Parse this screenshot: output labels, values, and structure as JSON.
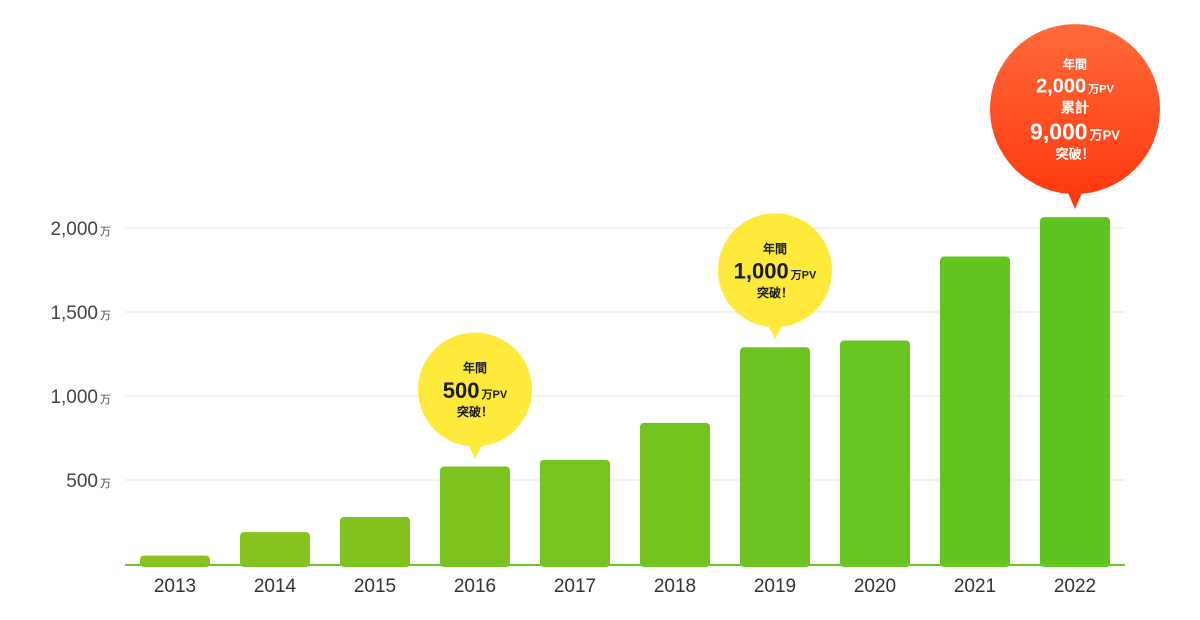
{
  "chart_data": {
    "type": "bar",
    "title": "",
    "xlabel": "",
    "ylabel": "",
    "categories": [
      "2013",
      "2014",
      "2015",
      "2016",
      "2017",
      "2018",
      "2019",
      "2020",
      "2021",
      "2022"
    ],
    "values": [
      50,
      190,
      280,
      580,
      620,
      840,
      1290,
      1330,
      1830,
      2065
    ],
    "unit": "万",
    "ylim": [
      0,
      2000
    ],
    "yticks": [
      {
        "value": 500,
        "label": "500"
      },
      {
        "value": 1000,
        "label": "1,000"
      },
      {
        "value": 1500,
        "label": "1,500"
      },
      {
        "value": 2000,
        "label": "2,000"
      }
    ],
    "grid": true,
    "bar_color_start": "#8cc21f",
    "bar_color_end": "#5ec41f",
    "axis_color": "#6ec62a",
    "annotations": [
      {
        "category": "2016",
        "color": "#ffea3c",
        "style": "yellow",
        "lines": [
          {
            "text": "年間",
            "size": 12
          },
          {
            "text": "500",
            "size": 22,
            "suffix": "万PV",
            "suffix_size": 11
          },
          {
            "text": "突破！",
            "size": 12
          }
        ]
      },
      {
        "category": "2019",
        "color": "#ffea3c",
        "style": "yellow",
        "lines": [
          {
            "text": "年間",
            "size": 12
          },
          {
            "text": "1,000",
            "size": 22,
            "suffix": "万PV",
            "suffix_size": 11
          },
          {
            "text": "突破！",
            "size": 12
          }
        ]
      },
      {
        "category": "2022",
        "color": "#ff4a1c",
        "style": "red",
        "lines": [
          {
            "text": "年間",
            "size": 12
          },
          {
            "text": "2,000",
            "size": 20,
            "suffix": "万PV",
            "suffix_size": 11
          },
          {
            "text": "累計",
            "size": 14
          },
          {
            "text": "9,000",
            "size": 23,
            "suffix": "万PV",
            "suffix_size": 13
          },
          {
            "text": "突破！",
            "size": 13
          }
        ]
      }
    ]
  }
}
